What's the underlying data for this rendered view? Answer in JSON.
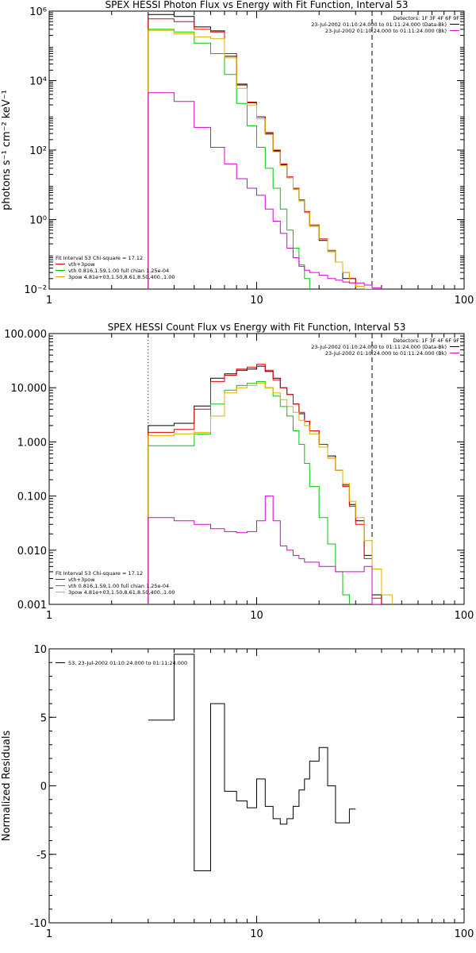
{
  "chart_data": [
    {
      "type": "line",
      "title": "SPEX HESSI Photon Flux vs Energy with Fit Function, Interval 53",
      "ylabel": "photons s⁻¹ cm⁻² keV⁻¹",
      "xlabel": "",
      "xscale": "log",
      "yscale": "log",
      "xlim": [
        1,
        100
      ],
      "ylim": [
        0.01,
        1000000
      ],
      "xticks": [
        1,
        10,
        100
      ],
      "xtick_labels": [
        "1",
        "10",
        "100"
      ],
      "yticks": [
        0.01,
        1,
        100,
        10000,
        1000000
      ],
      "ytick_labels": [
        "10⁻²",
        "10⁰",
        "10²",
        "10⁴",
        "10⁶"
      ],
      "vlines": [
        {
          "x": 3,
          "style": "dotted",
          "color": "#e0b000"
        },
        {
          "x": 36,
          "style": "dashed",
          "color": "#000000"
        }
      ],
      "legend_right": {
        "placement": "top-right",
        "header": "Detectors: 1F 3F 4F 6F 9F",
        "entries": [
          {
            "label": "23-Jul-2002 01:10:24.000 to 01:11:24.000 (Data-Bk)",
            "color": "#000000"
          },
          {
            "label": "23-Jul-2002 01:10:24.000 to 01:11:24.000 (Bk)",
            "color": "#d800d8"
          }
        ]
      },
      "legend_left": {
        "placement": "bottom-left",
        "header": "Fit Interval 53   Chi-square = 17.12",
        "entries": [
          {
            "label": "vth+3pow",
            "color": "#e00000"
          },
          {
            "label": "vth 0.816,1.59,1.00  full chian 1.25e-04",
            "color": "#00c800"
          },
          {
            "label": "3pow 4.81e+03,1.50,8.61,8.50,400.,1.00",
            "color": "#e0b000"
          }
        ]
      },
      "edges": [
        3,
        4,
        5,
        6,
        7,
        8,
        9,
        10,
        11,
        12,
        13,
        14,
        15,
        16,
        17,
        18,
        20,
        22,
        24,
        26,
        28,
        30,
        33,
        36,
        40,
        45
      ],
      "series": [
        {
          "name": "Data-Bk",
          "color": "#000000",
          "values": [
            800000,
            700000,
            350000,
            270000,
            50000,
            7500,
            2300,
            900,
            300,
            95,
            38,
            16,
            7.5,
            3.5,
            1.6,
            0.65,
            0.25,
            0.12,
            0.06,
            0.02,
            0.02,
            0.01,
            0.01,
            null,
            null
          ]
        },
        {
          "name": "vth+3pow",
          "color": "#e00000",
          "values": [
            600000,
            500000,
            300000,
            250000,
            60000,
            8000,
            2400,
            900,
            320,
            100,
            40,
            17,
            8,
            3.7,
            1.7,
            0.7,
            0.28,
            0.13,
            0.06,
            0.03,
            0.02,
            0.01,
            null,
            null,
            null
          ]
        },
        {
          "name": "vth",
          "color": "#00c800",
          "values": [
            300000,
            250000,
            120000,
            60000,
            15000,
            2200,
            500,
            120,
            30,
            8,
            2,
            0.5,
            0.15,
            0.05,
            0.02,
            null,
            null,
            null,
            null,
            null,
            null,
            null,
            null,
            null,
            null
          ]
        },
        {
          "name": "3pow",
          "color": "#e0b000",
          "values": [
            280000,
            220000,
            180000,
            160000,
            45000,
            6000,
            2000,
            800,
            280,
            90,
            36,
            16,
            7.5,
            3.5,
            1.6,
            0.65,
            0.27,
            0.12,
            0.06,
            0.03,
            0.015,
            0.012,
            0.01,
            null,
            null
          ]
        },
        {
          "name": "Bk",
          "color": "#d800d8",
          "values": [
            4500,
            2500,
            450,
            120,
            40,
            15,
            8,
            5,
            2,
            0.9,
            0.4,
            0.15,
            0.08,
            0.045,
            0.035,
            0.03,
            0.025,
            0.02,
            0.018,
            0.016,
            0.015,
            0.015,
            0.013,
            0.011,
            null
          ]
        }
      ]
    },
    {
      "type": "line",
      "title": "SPEX HESSI Count Flux vs Energy with Fit Function, Interval 53",
      "xlabel": "",
      "ylabel": "",
      "xscale": "log",
      "yscale": "log",
      "xlim": [
        1,
        100
      ],
      "ylim": [
        0.001,
        100
      ],
      "xticks": [
        1,
        10,
        100
      ],
      "xtick_labels": [
        "1",
        "10",
        "100"
      ],
      "yticks": [
        0.001,
        0.01,
        0.1,
        1,
        10,
        100
      ],
      "ytick_labels": [
        "0.001",
        "0.010",
        "0.100",
        "1.000",
        "10.000",
        "100.000"
      ],
      "vlines": [
        {
          "x": 3,
          "style": "dotted",
          "color": "#000000"
        },
        {
          "x": 36,
          "style": "dashed",
          "color": "#000000"
        }
      ],
      "legend_right": {
        "placement": "top-right",
        "header": "Detectors: 1F 3F 4F 6F 9F",
        "entries": [
          {
            "label": "23-Jul-2002 01:10:24.000 to 01:11:24.000 (Data-Bk)",
            "color": "#000000"
          },
          {
            "label": "23-Jul-2002 01:10:24.000 to 01:11:24.000 (Bk)",
            "color": "#d800d8"
          }
        ]
      },
      "legend_left": {
        "placement": "bottom-left",
        "header": "Fit Interval 53   Chi-square = 17.12",
        "entries": [
          {
            "label": "vth+3pow",
            "color": "#e00000"
          },
          {
            "label": "vth 0.816,1.59,1.00  full chian 1.25e-04",
            "color": "#00c800"
          },
          {
            "label": "3pow 4.81e+03,1.50,8.61,8.50,400.,1.00",
            "color": "#e0b000"
          }
        ]
      },
      "edges": [
        3,
        4,
        5,
        6,
        7,
        8,
        9,
        10,
        11,
        12,
        13,
        14,
        15,
        16,
        17,
        18,
        20,
        22,
        24,
        26,
        28,
        30,
        33,
        36,
        40,
        45
      ],
      "series": [
        {
          "name": "Data-Bk",
          "color": "#000000",
          "values": [
            2.0,
            2.2,
            4.6,
            15,
            18,
            21,
            22,
            25,
            20,
            15,
            10,
            7.5,
            5,
            3.3,
            2.4,
            1.6,
            0.9,
            0.55,
            0.3,
            0.16,
            0.07,
            0.035,
            0.008,
            0.0015,
            null
          ]
        },
        {
          "name": "vth+3pow",
          "color": "#e00000",
          "values": [
            1.5,
            1.7,
            4.0,
            13,
            17,
            22,
            24,
            27,
            21,
            14,
            10,
            7.5,
            5,
            3.5,
            2.4,
            1.6,
            0.9,
            0.5,
            0.3,
            0.15,
            0.065,
            0.03,
            0.007,
            0.0013,
            null
          ]
        },
        {
          "name": "vth",
          "color": "#00c800",
          "values": [
            0.85,
            0.85,
            1.4,
            5,
            9,
            11,
            12,
            13,
            10,
            7,
            4.5,
            3,
            1.6,
            0.9,
            0.4,
            0.15,
            0.04,
            0.013,
            0.004,
            0.0015,
            null,
            null,
            null,
            null,
            null
          ]
        },
        {
          "name": "3pow",
          "color": "#e0b000",
          "values": [
            1.3,
            1.4,
            1.5,
            3,
            8,
            10,
            11,
            12,
            10,
            8,
            6,
            4.5,
            3.5,
            2.5,
            2,
            1.4,
            0.8,
            0.5,
            0.3,
            0.17,
            0.08,
            0.04,
            0.015,
            0.0045,
            0.0015
          ]
        },
        {
          "name": "Bk",
          "color": "#d800d8",
          "values": [
            0.04,
            0.035,
            0.03,
            0.025,
            0.022,
            0.021,
            0.022,
            0.035,
            0.1,
            0.035,
            0.012,
            0.01,
            0.008,
            0.007,
            0.006,
            0.006,
            0.005,
            0.005,
            0.004,
            0.004,
            0.004,
            0.004,
            0.005,
            0.001,
            null
          ]
        }
      ]
    },
    {
      "type": "line",
      "title": "",
      "xlabel": "",
      "ylabel": "Normalized Residuals",
      "xscale": "log",
      "yscale": "linear",
      "xlim": [
        1,
        100
      ],
      "ylim": [
        -10,
        10
      ],
      "xticks": [
        1,
        10,
        100
      ],
      "xtick_labels": [
        "1",
        "10",
        "100"
      ],
      "yticks": [
        -10,
        -5,
        0,
        5,
        10
      ],
      "ytick_labels": [
        "-10",
        "-5",
        "0",
        "5",
        "10"
      ],
      "legend_left": {
        "placement": "top-left",
        "entries": [
          {
            "label": "53, 23-Jul-2002 01:10:24.000 to 01:11:24.000",
            "color": "#000000"
          }
        ]
      },
      "edges": [
        3,
        4,
        5,
        6,
        7,
        8,
        9,
        10,
        11,
        12,
        13,
        14,
        15,
        16,
        17,
        18,
        20,
        22,
        24,
        26,
        28,
        30,
        33,
        36
      ],
      "series": [
        {
          "name": "",
          "color": "#000000",
          "values": [
            4.8,
            9.6,
            -6.2,
            6.0,
            -0.4,
            -1.1,
            -1.6,
            0.5,
            -1.5,
            -2.4,
            -2.8,
            -2.4,
            -1.5,
            -0.3,
            0.5,
            1.8,
            2.8,
            0.0,
            -2.7,
            -2.7,
            -1.7,
            null,
            null
          ]
        }
      ]
    }
  ]
}
